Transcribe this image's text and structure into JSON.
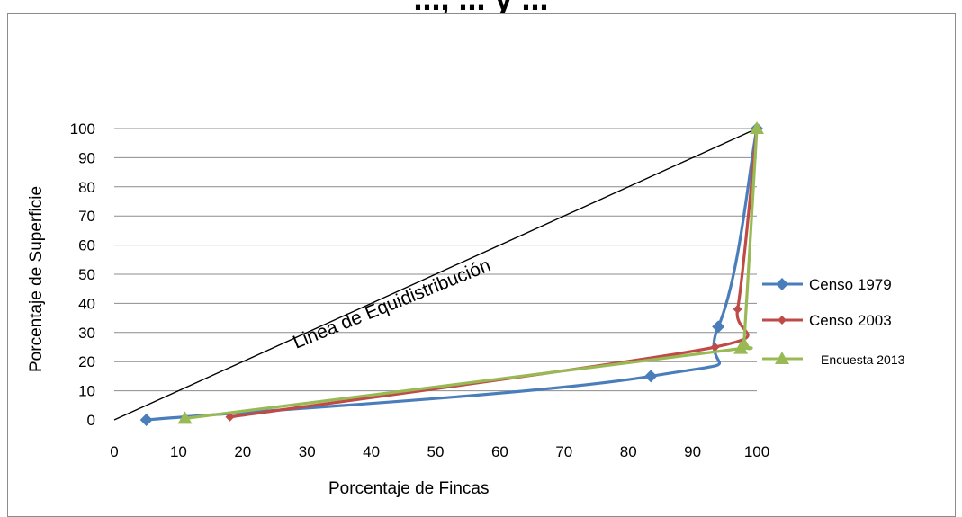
{
  "title": "..., ... y ...",
  "chart_data": {
    "type": "line",
    "xlabel": "Porcentaje de Fincas",
    "ylabel": "Porcentaje de Superficie",
    "xlim": [
      0,
      100
    ],
    "ylim": [
      0,
      100
    ],
    "x_ticks": [
      "0",
      "10",
      "20",
      "30",
      "40",
      "50",
      "60",
      "70",
      "80",
      "90",
      "100"
    ],
    "y_ticks": [
      "0",
      "10",
      "20",
      "30",
      "40",
      "50",
      "60",
      "70",
      "80",
      "90",
      "100"
    ],
    "grid": "horizontal",
    "legend_position": "right",
    "annotation": "Linea de Equidistribución",
    "reference_line": {
      "x": [
        0,
        100
      ],
      "y": [
        0,
        100
      ],
      "color": "#000000"
    },
    "series": [
      {
        "name": "Censo 1979",
        "color": "#4a7ebb",
        "marker": "diamond",
        "x": [
          5,
          83.5,
          94,
          100
        ],
        "y": [
          0,
          15,
          32,
          100
        ]
      },
      {
        "name": "Censo 2003",
        "color": "#be4b48",
        "marker": "diamond-small",
        "x": [
          18,
          93.5,
          97,
          100
        ],
        "y": [
          1,
          25,
          38,
          100
        ]
      },
      {
        "name": "Encuesta 2013",
        "color": "#98b954",
        "marker": "triangle",
        "x": [
          11,
          97.5,
          98,
          100
        ],
        "y": [
          0.5,
          24.5,
          26,
          100
        ]
      }
    ]
  }
}
